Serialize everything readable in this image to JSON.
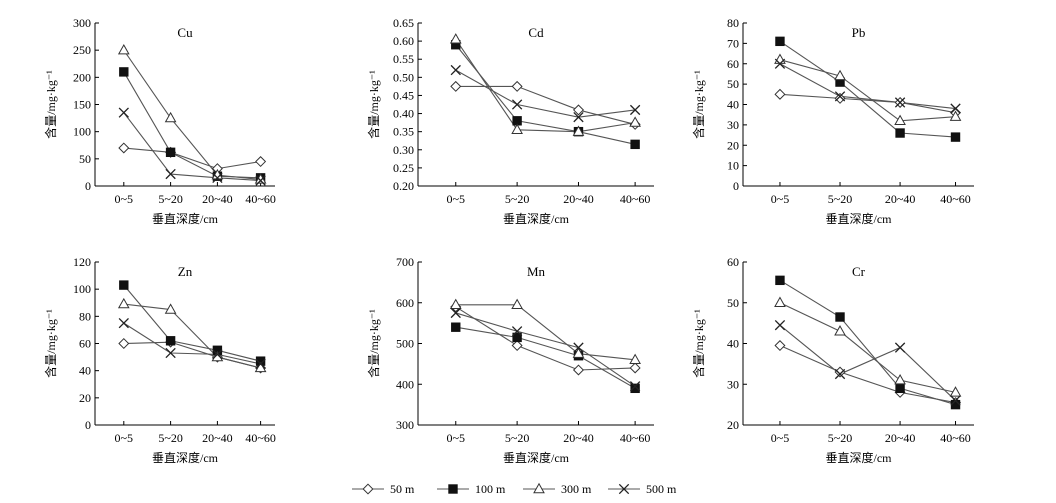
{
  "chart_data": {
    "type": "line",
    "x_categories": [
      "0~5",
      "5~20",
      "20~40",
      "40~60"
    ],
    "xlabel": "垂直深度/cm",
    "ylabel": "含量/mg·kg⁻¹",
    "legend": {
      "placement": "bottom-center",
      "entries": [
        {
          "name": "50 m",
          "marker": "open-diamond"
        },
        {
          "name": "100 m",
          "marker": "filled-square"
        },
        {
          "name": "300 m",
          "marker": "open-triangle"
        },
        {
          "name": "500 m",
          "marker": "cross"
        }
      ]
    },
    "panels": [
      {
        "title": "Cu",
        "ylim": [
          0,
          300
        ],
        "yticks": [
          "0",
          "50",
          "100",
          "150",
          "200",
          "250",
          "300"
        ],
        "series": [
          {
            "name": "50 m",
            "values": [
              70,
              62,
              32,
              45
            ]
          },
          {
            "name": "100 m",
            "values": [
              210,
              62,
              18,
              15
            ]
          },
          {
            "name": "300 m",
            "values": [
              250,
              125,
              20,
              12
            ]
          },
          {
            "name": "500 m",
            "values": [
              135,
              22,
              15,
              10
            ]
          }
        ]
      },
      {
        "title": "Cd",
        "ylim": [
          0.2,
          0.65
        ],
        "yticks": [
          "0.20",
          "0.25",
          "0.30",
          "0.35",
          "0.40",
          "0.45",
          "0.50",
          "0.55",
          "0.60",
          "0.65"
        ],
        "series": [
          {
            "name": "50 m",
            "values": [
              0.475,
              0.475,
              0.41,
              0.37
            ]
          },
          {
            "name": "100 m",
            "values": [
              0.59,
              0.38,
              0.35,
              0.315
            ]
          },
          {
            "name": "300 m",
            "values": [
              0.605,
              0.355,
              0.35,
              0.375
            ]
          },
          {
            "name": "500 m",
            "values": [
              0.52,
              0.425,
              0.39,
              0.41
            ]
          }
        ]
      },
      {
        "title": "Pb",
        "ylim": [
          0,
          80
        ],
        "yticks": [
          "0",
          "10",
          "20",
          "30",
          "40",
          "50",
          "60",
          "70",
          "80"
        ],
        "series": [
          {
            "name": "50 m",
            "values": [
              45,
              43,
              41,
              36
            ]
          },
          {
            "name": "100 m",
            "values": [
              71,
              51,
              26,
              24
            ]
          },
          {
            "name": "300 m",
            "values": [
              62,
              54,
              32,
              34
            ]
          },
          {
            "name": "500 m",
            "values": [
              60,
              44,
              41,
              38
            ]
          }
        ]
      },
      {
        "title": "Zn",
        "ylim": [
          0,
          120
        ],
        "yticks": [
          "0",
          "20",
          "40",
          "60",
          "80",
          "100",
          "120"
        ],
        "series": [
          {
            "name": "50 m",
            "values": [
              60,
              61,
              50,
              42
            ]
          },
          {
            "name": "100 m",
            "values": [
              103,
              62,
              55,
              47
            ]
          },
          {
            "name": "300 m",
            "values": [
              89,
              85,
              50,
              42
            ]
          },
          {
            "name": "500 m",
            "values": [
              75,
              53,
              52,
              45
            ]
          }
        ]
      },
      {
        "title": "Mn",
        "ylim": [
          300,
          700
        ],
        "yticks": [
          "300",
          "400",
          "500",
          "600",
          "700"
        ],
        "series": [
          {
            "name": "50 m",
            "values": [
              590,
              495,
              435,
              440
            ]
          },
          {
            "name": "100 m",
            "values": [
              540,
              515,
              470,
              390
            ]
          },
          {
            "name": "300 m",
            "values": [
              595,
              595,
              475,
              460
            ]
          },
          {
            "name": "500 m",
            "values": [
              575,
              530,
              490,
              395
            ]
          }
        ]
      },
      {
        "title": "Cr",
        "ylim": [
          20,
          60
        ],
        "yticks": [
          "20",
          "30",
          "40",
          "50",
          "60"
        ],
        "series": [
          {
            "name": "50 m",
            "values": [
              39.5,
              33,
              28,
              25.5
            ]
          },
          {
            "name": "100 m",
            "values": [
              55.5,
              46.5,
              29,
              25
            ]
          },
          {
            "name": "300 m",
            "values": [
              50,
              43,
              31,
              28
            ]
          },
          {
            "name": "500 m",
            "values": [
              44.5,
              32.5,
              39,
              26
            ]
          }
        ]
      }
    ]
  }
}
